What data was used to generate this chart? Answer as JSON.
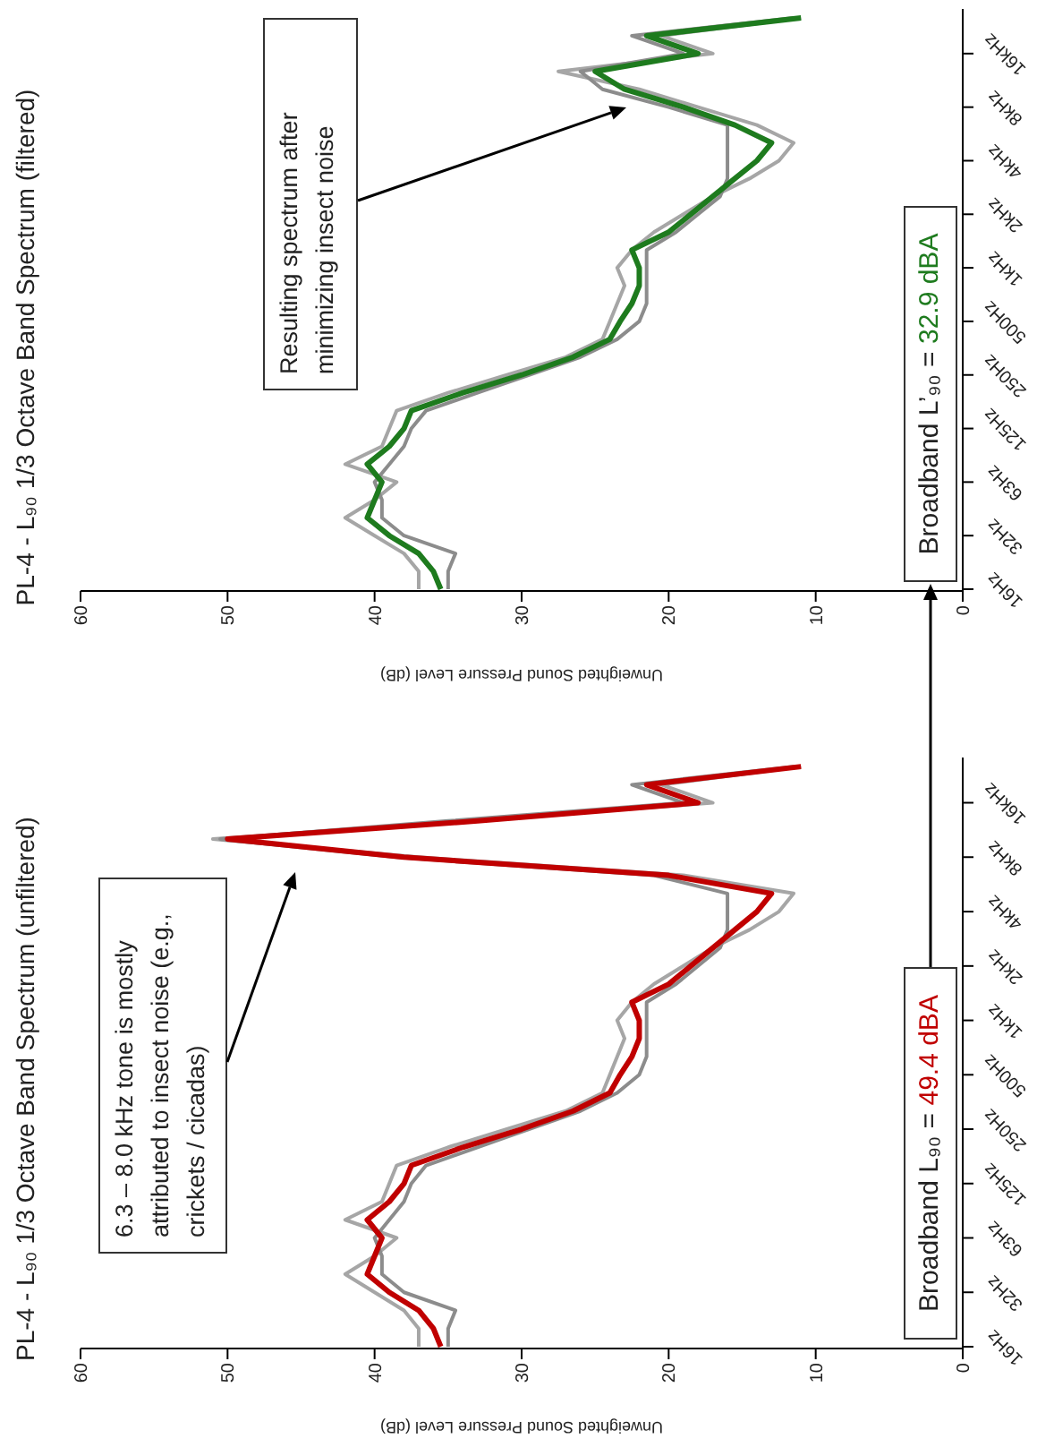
{
  "chart_data": [
    {
      "type": "line",
      "orientation": "horizontal",
      "title": "PL-4 - L₉₀ 1/3 Octave Band Spectrum (unfiltered)",
      "xlabel": "Unweighted Sound Pressure Level (dB)",
      "categories": [
        null,
        null,
        "16kHz",
        null,
        null,
        "8kHz",
        null,
        null,
        "4kHz",
        null,
        null,
        "2kHz",
        null,
        null,
        "1kHz",
        null,
        null,
        "500Hz",
        null,
        null,
        "250Hz",
        null,
        null,
        "125Hz",
        null,
        null,
        "63Hz",
        null,
        null,
        "32Hz",
        null,
        null,
        "16Hz"
      ],
      "series": [
        {
          "color": "#a6a6a6",
          "values": [
            11,
            20.5,
            17,
            34,
            51,
            37,
            19,
            11.5,
            12.5,
            14.5,
            17,
            19,
            21,
            22.5,
            23.5,
            23,
            23.5,
            24,
            24.5,
            27,
            31,
            35,
            38.5,
            39,
            39.5,
            42,
            38.5,
            40,
            42,
            40,
            38,
            37,
            37
          ]
        },
        {
          "color": "#8c8c8c",
          "values": [
            11.5,
            22.5,
            19,
            35,
            50.5,
            38.5,
            21,
            16,
            16,
            16,
            16.5,
            18,
            19.5,
            21.5,
            21.5,
            21.5,
            21.5,
            22,
            23.5,
            26,
            29.5,
            33,
            36.5,
            37.5,
            38,
            39,
            40,
            39.5,
            39.5,
            38,
            34.5,
            35,
            35
          ]
        },
        {
          "color": "#c00000",
          "values": [
            11,
            21.5,
            18,
            33,
            50,
            38,
            20,
            13,
            14,
            15.5,
            17,
            18.5,
            20,
            22.5,
            22,
            22,
            22.5,
            23.3,
            24,
            26.5,
            30,
            34,
            37.5,
            38,
            39,
            40.5,
            39.5,
            40,
            40.5,
            39,
            37,
            36,
            35.5
          ]
        }
      ],
      "xlim": [
        60,
        0
      ],
      "xticks": [
        0,
        10,
        20,
        30,
        40,
        50,
        60
      ],
      "grid": false,
      "annotations": [
        "6.3 – 8.0 kHz tone is mostly attributed to insect noise (e.g., crickets / cicadas)",
        "Broadband L₉₀ = 49.4 dBA"
      ]
    },
    {
      "type": "line",
      "orientation": "horizontal",
      "title": "PL-4 - L₉₀ 1/3 Octave Band Spectrum (filtered)",
      "xlabel": "Unweighted Sound Pressure Level (dB)",
      "categories": [
        null,
        null,
        "16kHz",
        null,
        null,
        "8kHz",
        null,
        null,
        "4kHz",
        null,
        null,
        "2kHz",
        null,
        null,
        "1kHz",
        null,
        null,
        "500Hz",
        null,
        null,
        "250Hz",
        null,
        null,
        "125Hz",
        null,
        null,
        "63Hz",
        null,
        null,
        "32Hz",
        null,
        null,
        "16Hz"
      ],
      "series": [
        {
          "color": "#a6a6a6",
          "values": [
            11,
            20.5,
            17,
            27.5,
            22,
            18,
            14,
            11.5,
            12.5,
            14.5,
            17,
            19,
            21,
            22.5,
            23.5,
            23,
            23.5,
            24,
            24.5,
            27,
            31,
            35,
            38.5,
            39,
            39.5,
            42,
            38.5,
            40,
            42,
            40,
            38,
            37,
            37
          ]
        },
        {
          "color": "#8c8c8c",
          "values": [
            11.5,
            22.5,
            19,
            26,
            24.5,
            20,
            16,
            16,
            16,
            16,
            16.5,
            18,
            19.5,
            21.5,
            21.5,
            21.5,
            21.5,
            22,
            23.5,
            26,
            29.5,
            33,
            36.5,
            37.5,
            38,
            39,
            40,
            39.5,
            39.5,
            38,
            34.5,
            35,
            35
          ]
        },
        {
          "color": "#1e7b1e",
          "values": [
            11,
            21.5,
            18,
            25,
            23,
            19,
            15.5,
            13,
            14,
            15.5,
            17,
            18.5,
            20,
            22.5,
            22,
            22,
            22.5,
            23.3,
            24,
            26.5,
            30,
            34,
            37.5,
            38,
            39,
            40.5,
            39.5,
            40,
            40.5,
            39,
            37,
            36,
            35.5
          ]
        }
      ],
      "xlim": [
        60,
        0
      ],
      "xticks": [
        0,
        10,
        20,
        30,
        40,
        50,
        60
      ],
      "grid": false,
      "annotations": [
        "Resulting spectrum after minimizing insect noise",
        "Broadband L’₉₀ = 32.9 dBA"
      ]
    }
  ]
}
